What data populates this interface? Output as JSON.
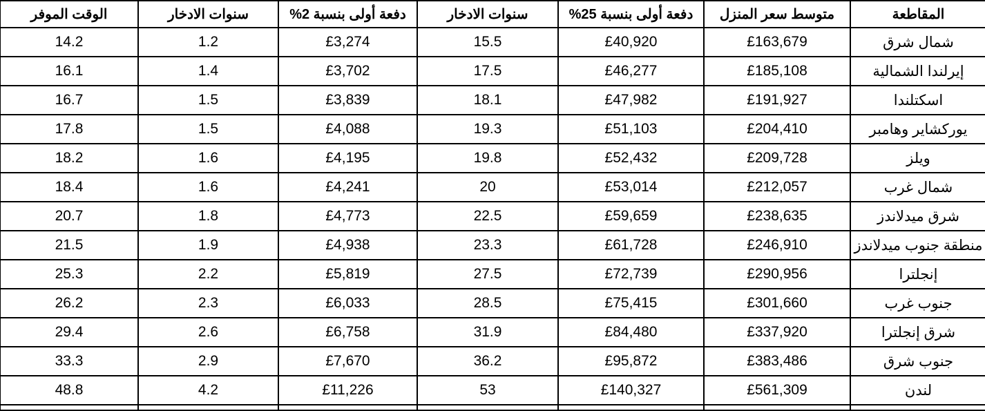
{
  "table": {
    "headers": [
      "المقاطعة",
      "متوسط سعر المنزل",
      "دفعة أولى بنسبة 25%",
      "سنوات الادخار",
      "دفعة أولى بنسبة 2%",
      "سنوات الادخار",
      "الوقت الموفر"
    ],
    "rows": [
      [
        "شمال شرق",
        "£163,679",
        "£40,920",
        "15.5",
        "£3,274",
        "1.2",
        "14.2"
      ],
      [
        "إيرلندا الشمالية",
        "£185,108",
        "£46,277",
        "17.5",
        "£3,702",
        "1.4",
        "16.1"
      ],
      [
        "اسكتلندا",
        "£191,927",
        "£47,982",
        "18.1",
        "£3,839",
        "1.5",
        "16.7"
      ],
      [
        "يوركشاير وهامبر",
        "£204,410",
        "£51,103",
        "19.3",
        "£4,088",
        "1.5",
        "17.8"
      ],
      [
        "ويلز",
        "£209,728",
        "£52,432",
        "19.8",
        "£4,195",
        "1.6",
        "18.2"
      ],
      [
        "شمال غرب",
        "£212,057",
        "£53,014",
        "20",
        "£4,241",
        "1.6",
        "18.4"
      ],
      [
        "شرق ميدلاندز",
        "£238,635",
        "£59,659",
        "22.5",
        "£4,773",
        "1.8",
        "20.7"
      ],
      [
        "منطقة جنوب ميدلاندز",
        "£246,910",
        "£61,728",
        "23.3",
        "£4,938",
        "1.9",
        "21.5"
      ],
      [
        "إنجلترا",
        "£290,956",
        "£72,739",
        "27.5",
        "£5,819",
        "2.2",
        "25.3"
      ],
      [
        "جنوب غرب",
        "£301,660",
        "£75,415",
        "28.5",
        "£6,033",
        "2.3",
        "26.2"
      ],
      [
        "شرق إنجلترا",
        "£337,920",
        "£84,480",
        "31.9",
        "£6,758",
        "2.6",
        "29.4"
      ],
      [
        "جنوب شرق",
        "£383,486",
        "£95,872",
        "36.2",
        "£7,670",
        "2.9",
        "33.3"
      ],
      [
        "لندن",
        "£561,309",
        "£140,327",
        "53",
        "£11,226",
        "4.2",
        "48.8"
      ]
    ]
  }
}
